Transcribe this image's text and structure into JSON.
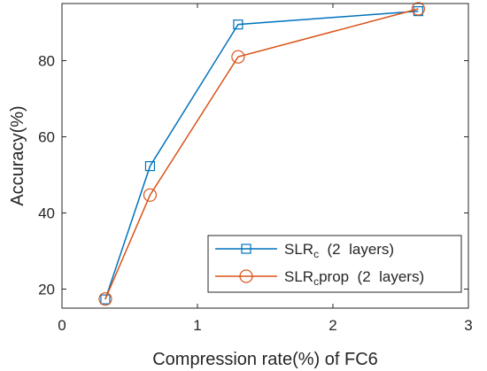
{
  "chart_data": {
    "type": "line",
    "xlabel": "Compression rate(%) of FC6",
    "ylabel": "Accuracy(%)",
    "xlim": [
      0,
      3
    ],
    "ylim": [
      15,
      95
    ],
    "xticks": [
      0,
      1,
      2,
      3
    ],
    "yticks": [
      20,
      40,
      60,
      80
    ],
    "grid": false,
    "legend_position": "bottom-right",
    "series": [
      {
        "name_main": "SLR",
        "name_sub": "c",
        "name_rest": "  (2  layers)",
        "color": "#0072BD",
        "marker": "square",
        "x": [
          0.32,
          0.65,
          1.3,
          2.63
        ],
        "y": [
          17.3,
          52.3,
          89.5,
          93.0
        ]
      },
      {
        "name_main": "SLR",
        "name_sub": "c",
        "name_rest": "prop  (2  layers)",
        "color": "#D95319",
        "marker": "circle",
        "x": [
          0.32,
          0.65,
          1.3,
          2.63
        ],
        "y": [
          17.4,
          44.7,
          81.0,
          93.6
        ]
      }
    ]
  }
}
